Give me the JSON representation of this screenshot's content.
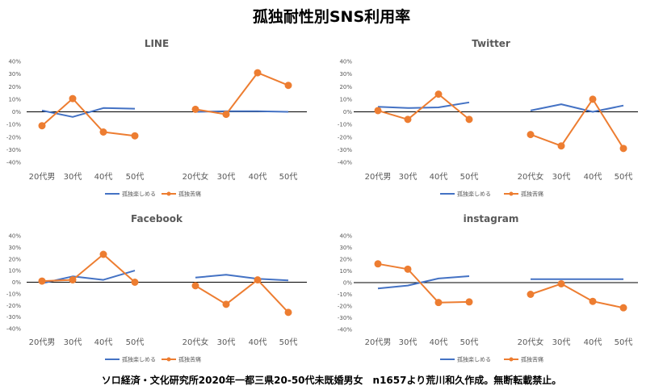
{
  "title": "孤独耐性別SNS利用率",
  "footer": "ソロ経済・文化研究所2020年一都三県20-50代未既婚男女　n1657より荒川和久作成。無断転載禁止。",
  "colors": {
    "blue": "#4472C4",
    "orange": "#ED7D31",
    "axis": "#000000",
    "text": "#595959"
  },
  "chart_data": [
    {
      "type": "line",
      "title": "LINE",
      "categories": [
        "20代男",
        "30代",
        "40代",
        "50代",
        "20代女",
        "30代",
        "40代",
        "50代"
      ],
      "yticks": [
        "40%",
        "30%",
        "20%",
        "10%",
        "0%",
        "-10%",
        "-20%",
        "-30%",
        "-40%"
      ],
      "ylim": [
        -40,
        40
      ],
      "series": [
        {
          "name": "孤独楽しめる",
          "values": [
            1,
            -4,
            3,
            2.5,
            0,
            0.5,
            0.5,
            0
          ]
        },
        {
          "name": "孤独苦痛",
          "values": [
            -11,
            10.5,
            -16,
            -19,
            2,
            -2,
            31,
            21
          ]
        }
      ]
    },
    {
      "type": "line",
      "title": "Twitter",
      "categories": [
        "20代男",
        "30代",
        "40代",
        "50代",
        "20代女",
        "30代",
        "40代",
        "50代"
      ],
      "yticks": [
        "40%",
        "30%",
        "20%",
        "10%",
        "0%",
        "-10%",
        "-20%",
        "-30%",
        "-40%"
      ],
      "ylim": [
        -40,
        40
      ],
      "series": [
        {
          "name": "孤独楽しめる",
          "values": [
            4,
            3,
            3.5,
            7.5,
            1,
            6,
            0,
            5
          ]
        },
        {
          "name": "孤独苦痛",
          "values": [
            1,
            -6,
            14,
            -6,
            -18,
            -27,
            10,
            -29
          ]
        }
      ]
    },
    {
      "type": "line",
      "title": "Facebook",
      "categories": [
        "20代男",
        "30代",
        "40代",
        "50代",
        "20代女",
        "30代",
        "40代",
        "50代"
      ],
      "yticks": [
        "40%",
        "30%",
        "20%",
        "10%",
        "0%",
        "-10%",
        "-20%",
        "-30%",
        "-40%"
      ],
      "ylim": [
        -40,
        40
      ],
      "series": [
        {
          "name": "孤独楽しめる",
          "values": [
            -1,
            5,
            2,
            10,
            4,
            6.5,
            3,
            1.5
          ]
        },
        {
          "name": "孤独苦痛",
          "values": [
            1,
            2,
            24,
            0,
            -3,
            -19,
            2,
            -26
          ]
        }
      ]
    },
    {
      "type": "line",
      "title": "instagram",
      "categories": [
        "20代男",
        "30代",
        "40代",
        "50代",
        "20代女",
        "30代",
        "40代",
        "50代"
      ],
      "yticks": [
        "40%",
        "30%",
        "20%",
        "10%",
        "0%",
        "-10%",
        "-20%",
        "-30%",
        "-40%"
      ],
      "ylim": [
        -40,
        40
      ],
      "series": [
        {
          "name": "孤独楽しめる",
          "values": [
            -5,
            -2.5,
            3.5,
            5.5,
            3,
            3,
            3,
            3
          ]
        },
        {
          "name": "孤独苦痛",
          "values": [
            16,
            11.5,
            -17,
            -16.5,
            -10,
            -1,
            -16,
            -21.5
          ]
        }
      ]
    }
  ]
}
